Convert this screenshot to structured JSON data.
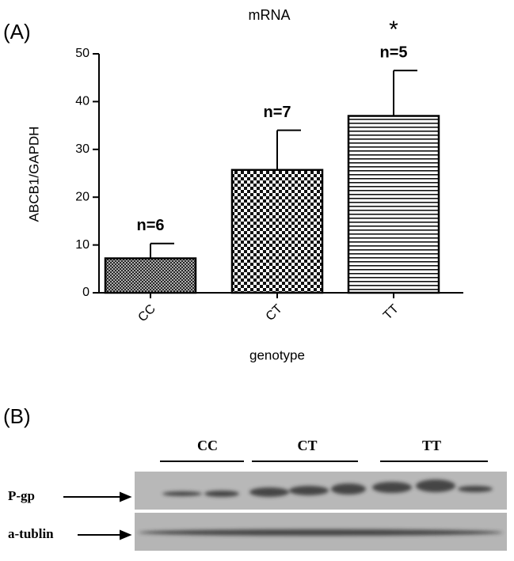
{
  "chart_data": {
    "type": "bar",
    "panel_label": "(A)",
    "title": "mRNA",
    "y_label": "ABCB1/GAPDH",
    "x_label": "genotype",
    "categories": [
      "CC",
      "CT",
      "TT"
    ],
    "values": [
      7.2,
      25.7,
      37
    ],
    "errors": [
      3.1,
      8.3,
      9.5
    ],
    "annotations": [
      "n=6",
      "n=7",
      "n=5"
    ],
    "significance": [
      "*"
    ],
    "ylim": [
      0,
      50
    ],
    "yticks": [
      0,
      10,
      20,
      30,
      40,
      50
    ]
  },
  "blot": {
    "panel_label": "(B)",
    "groups": [
      "CC",
      "CT",
      "TT"
    ],
    "rows": [
      "P-gp",
      "a-tublin"
    ]
  }
}
